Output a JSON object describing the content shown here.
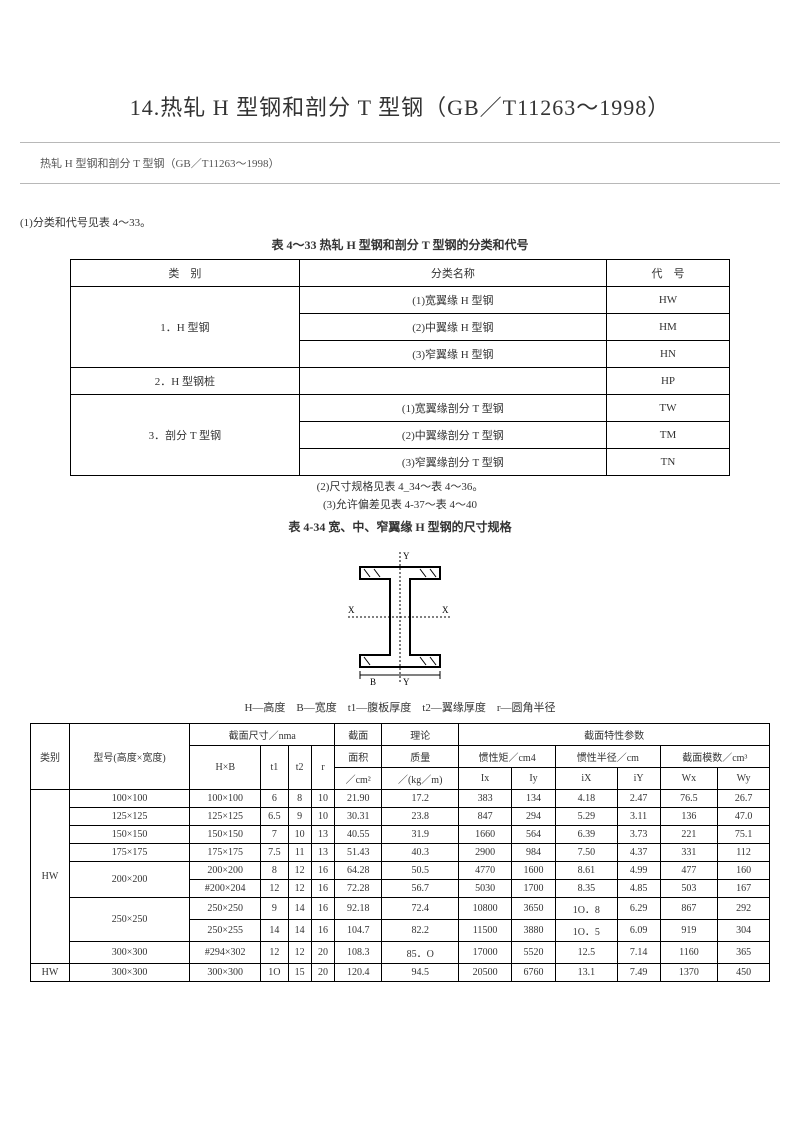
{
  "main_title": "14.热轧 H 型钢和剖分 T 型钢（GB／T11263～1998）",
  "subtitle": "热轧 H 型钢和剖分 T 型钢（GB／T11263～1998）",
  "note1": "(1)分类和代号见表 4～33。",
  "table1_caption": "表 4～33 热轧 H 型钢和剖分 T 型钢的分类和代号",
  "table1": {
    "headers": [
      "类　别",
      "分类名称",
      "代　号"
    ],
    "rows": [
      {
        "cat": "1．H 型钢",
        "rowspan": 3,
        "items": [
          {
            "name": "(1)宽翼缘 H 型钢",
            "code": "HW"
          },
          {
            "name": "(2)中翼缘 H 型钢",
            "code": "HM"
          },
          {
            "name": "(3)窄翼缘 H 型钢",
            "code": "HN"
          }
        ]
      },
      {
        "cat": "2．H 型钢桩",
        "rowspan": 1,
        "items": [
          {
            "name": "",
            "code": "HP"
          }
        ]
      },
      {
        "cat": "3．剖分 T 型钢",
        "rowspan": 3,
        "items": [
          {
            "name": "(1)宽翼缘剖分 T 型钢",
            "code": "TW"
          },
          {
            "name": "(2)中翼缘剖分 T 型钢",
            "code": "TM"
          },
          {
            "name": "(3)窄翼缘剖分 T 型钢",
            "code": "TN"
          }
        ]
      }
    ]
  },
  "mid_note1": "(2)尺寸规格见表 4_34～表 4～36。",
  "mid_note2": "(3)允许偏差见表 4-37～表 4～40",
  "table2_caption": "表 4-34 宽、中、窄翼缘 H 型钢的尺寸规格",
  "legend": "H—高度　B—宽度　t1—腹板厚度　t2—翼缘厚度　r—圆角半径",
  "table2": {
    "header_groups": {
      "leibie": "类别",
      "xinghao": "型号(高度×宽度)",
      "jiemian_chicun": "截面尺寸／nma",
      "jiemian_mianji_l1": "截面",
      "jiemian_mianji_l2": "面积",
      "jiemian_mianji_l3": "／cm²",
      "lilun_l1": "理论",
      "lilun_l2": "质量",
      "lilun_l3": "／(kg／m)",
      "texing": "截面特性参数",
      "HxB": "H×B",
      "t1": "t1",
      "t2": "t2",
      "r": "r",
      "guanju": "惯性矩／cm4",
      "banjing": "惯性半径／cm",
      "moshu": "截面模数／cm³",
      "Ix": "Ix",
      "Iy": "Iy",
      "iX": "iX",
      "iY": "iY",
      "Wx": "Wx",
      "Wy": "Wy"
    },
    "groups": [
      {
        "leibie": "HW",
        "rowspan": 9,
        "rows": [
          {
            "xh": "100×100",
            "xh_rs": 1,
            "hxb": "100×100",
            "t1": "6",
            "t2": "8",
            "r": "10",
            "area": "21.90",
            "mass": "17.2",
            "ix": "383",
            "iy": "134",
            "rix": "4.18",
            "riy": "2.47",
            "wx": "76.5",
            "wy": "26.7"
          },
          {
            "xh": "125×125",
            "xh_rs": 1,
            "hxb": "125×125",
            "t1": "6.5",
            "t2": "9",
            "r": "10",
            "area": "30.31",
            "mass": "23.8",
            "ix": "847",
            "iy": "294",
            "rix": "5.29",
            "riy": "3.11",
            "wx": "136",
            "wy": "47.0"
          },
          {
            "xh": "150×150",
            "xh_rs": 1,
            "hxb": "150×150",
            "t1": "7",
            "t2": "10",
            "r": "13",
            "area": "40.55",
            "mass": "31.9",
            "ix": "1660",
            "iy": "564",
            "rix": "6.39",
            "riy": "3.73",
            "wx": "221",
            "wy": "75.1"
          },
          {
            "xh": "175×175",
            "xh_rs": 1,
            "hxb": "175×175",
            "t1": "7.5",
            "t2": "11",
            "r": "13",
            "area": "51.43",
            "mass": "40.3",
            "ix": "2900",
            "iy": "984",
            "rix": "7.50",
            "riy": "4.37",
            "wx": "331",
            "wy": "112"
          },
          {
            "xh": "200×200",
            "xh_rs": 2,
            "hxb": "200×200",
            "t1": "8",
            "t2": "12",
            "r": "16",
            "area": "64.28",
            "mass": "50.5",
            "ix": "4770",
            "iy": "1600",
            "rix": "8.61",
            "riy": "4.99",
            "wx": "477",
            "wy": "160"
          },
          {
            "xh": "",
            "xh_rs": 0,
            "hxb": "#200×204",
            "t1": "12",
            "t2": "12",
            "r": "16",
            "area": "72.28",
            "mass": "56.7",
            "ix": "5030",
            "iy": "1700",
            "rix": "8.35",
            "riy": "4.85",
            "wx": "503",
            "wy": "167"
          },
          {
            "xh": "250×250",
            "xh_rs": 2,
            "hxb": "250×250",
            "t1": "9",
            "t2": "14",
            "r": "16",
            "area": "92.18",
            "mass": "72.4",
            "ix": "10800",
            "iy": "3650",
            "rix": "1O．8",
            "riy": "6.29",
            "wx": "867",
            "wy": "292"
          },
          {
            "xh": "",
            "xh_rs": 0,
            "hxb": "250×255",
            "t1": "14",
            "t2": "14",
            "r": "16",
            "area": "104.7",
            "mass": "82.2",
            "ix": "11500",
            "iy": "3880",
            "rix": "1O．5",
            "riy": "6.09",
            "wx": "919",
            "wy": "304"
          },
          {
            "xh": "300×300",
            "xh_rs": 1,
            "hxb": "#294×302",
            "t1": "12",
            "t2": "12",
            "r": "20",
            "area": "108.3",
            "mass": "85．O",
            "ix": "17000",
            "iy": "5520",
            "rix": "12.5",
            "riy": "7.14",
            "wx": "1160",
            "wy": "365"
          }
        ]
      },
      {
        "leibie": "HW",
        "rowspan": 1,
        "rows": [
          {
            "xh": "300×300",
            "xh_rs": 1,
            "hxb": "300×300",
            "t1": "1O",
            "t2": "15",
            "r": "20",
            "area": "120.4",
            "mass": "94.5",
            "ix": "20500",
            "iy": "6760",
            "rix": "13.1",
            "riy": "7.49",
            "wx": "1370",
            "wy": "450"
          }
        ]
      }
    ]
  },
  "colors": {
    "text": "#333333",
    "border": "#000000",
    "background": "#ffffff",
    "hr": "#b8b8b8"
  }
}
